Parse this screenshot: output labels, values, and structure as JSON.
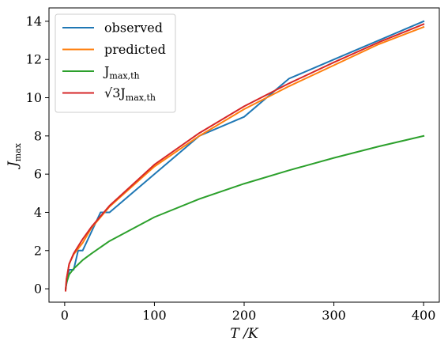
{
  "chart_data": {
    "type": "line",
    "xlabel": "T /K",
    "ylabel": "J_max",
    "xlim": [
      -17.5,
      417.5
    ],
    "ylim": [
      -0.7,
      14.7
    ],
    "xticks": [
      0,
      100,
      200,
      300,
      400
    ],
    "yticks": [
      0,
      2,
      4,
      6,
      8,
      10,
      12,
      14
    ],
    "grid": false,
    "legend_position": "top-left",
    "series": [
      {
        "name": "observed",
        "color": "#1f77b4",
        "x": [
          1,
          5,
          10,
          15,
          20,
          30,
          40,
          50,
          100,
          150,
          200,
          250,
          300,
          350,
          400
        ],
        "y": [
          0,
          1,
          1,
          2,
          2,
          3,
          4,
          4,
          6,
          8,
          9,
          11,
          12,
          13,
          14
        ]
      },
      {
        "name": "predicted",
        "color": "#ff7f0e",
        "x": [
          1,
          2,
          5,
          10,
          20,
          30,
          50,
          100,
          150,
          200,
          250,
          300,
          350,
          400
        ],
        "y": [
          -0.1,
          0.5,
          1.3,
          1.8,
          2.4,
          3.2,
          4.3,
          6.4,
          8.0,
          9.4,
          10.6,
          11.7,
          12.8,
          13.7
        ]
      },
      {
        "name": "J_max,th",
        "color": "#2ca02c",
        "x": [
          1,
          2,
          5,
          10,
          20,
          30,
          50,
          100,
          150,
          200,
          250,
          300,
          350,
          400
        ],
        "y": [
          -0.05,
          0.3,
          0.75,
          1.05,
          1.5,
          1.85,
          2.5,
          3.75,
          4.7,
          5.5,
          6.2,
          6.85,
          7.45,
          8.0
        ]
      },
      {
        "name": "√3J_max,th",
        "color": "#d62728",
        "x": [
          1,
          2,
          5,
          10,
          20,
          30,
          50,
          100,
          150,
          200,
          250,
          300,
          350,
          400
        ],
        "y": [
          -0.1,
          0.5,
          1.3,
          1.85,
          2.6,
          3.25,
          4.35,
          6.5,
          8.15,
          9.55,
          10.75,
          11.85,
          12.9,
          13.85
        ]
      }
    ]
  }
}
